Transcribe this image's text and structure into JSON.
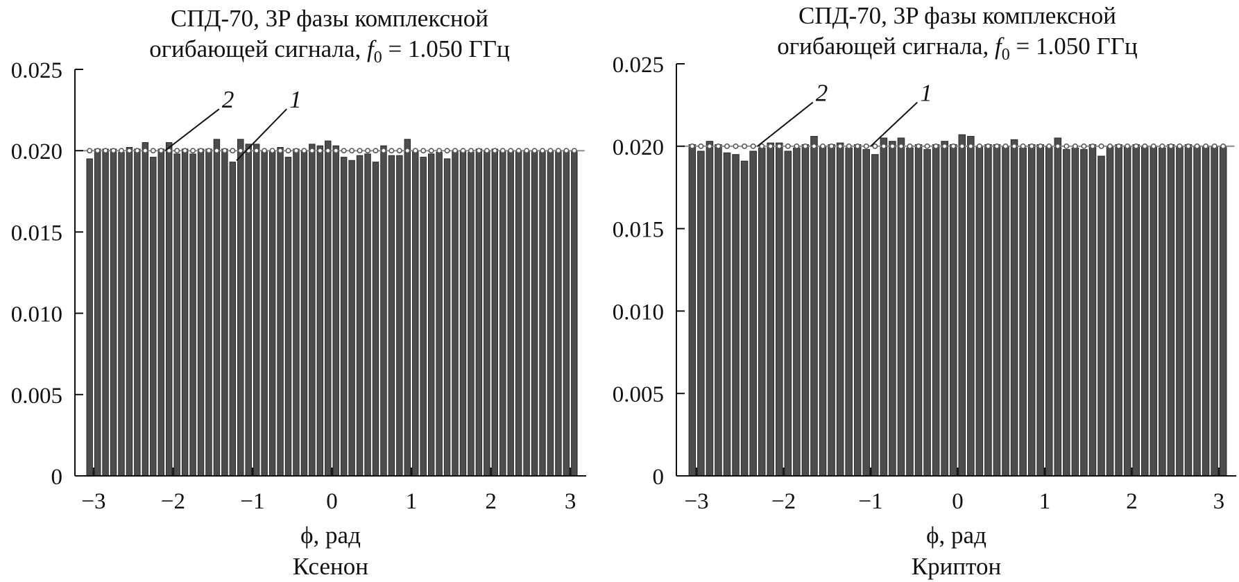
{
  "chart_data": [
    {
      "type": "bar",
      "title_prefix": "СПД-70, 3P фазы комплексной",
      "title_line2_prefix": "огибающей сигнала,",
      "title_f_symbol": "f",
      "title_f_subscript": "0",
      "title_f_value": "= 1.050 ГГц",
      "xlabel": "ϕ, рад",
      "caption": "Ксенон",
      "xlim": [
        -3.2,
        3.2
      ],
      "ylim": [
        0,
        0.025
      ],
      "xticks": [
        -3,
        -2,
        -1,
        0,
        1,
        2,
        3
      ],
      "xtick_labels": [
        "−3",
        "−2",
        "−1",
        "0",
        "1",
        "2",
        "3"
      ],
      "yticks": [
        0,
        0.005,
        0.01,
        0.015,
        0.02,
        0.025
      ],
      "ytick_labels": [
        "0",
        "0.005",
        "0.010",
        "0.015",
        "0.020",
        "0.025"
      ],
      "series": [
        {
          "label": "1",
          "kind": "bar",
          "x_start": -3.1,
          "bin_width": 0.1,
          "values": [
            0.0195,
            0.0201,
            0.0201,
            0.0201,
            0.0199,
            0.0202,
            0.0201,
            0.0205,
            0.0196,
            0.0201,
            0.0205,
            0.0198,
            0.0201,
            0.0198,
            0.0201,
            0.0201,
            0.0207,
            0.0201,
            0.0193,
            0.0207,
            0.0204,
            0.0204,
            0.02,
            0.02,
            0.0202,
            0.0196,
            0.0201,
            0.02,
            0.0204,
            0.0203,
            0.0206,
            0.0203,
            0.0196,
            0.0194,
            0.0197,
            0.0198,
            0.0193,
            0.0203,
            0.0197,
            0.0197,
            0.0207,
            0.02,
            0.0196,
            0.0198,
            0.0199,
            0.0195,
            0.02,
            0.02,
            0.0199,
            0.0201,
            0.02,
            0.0201,
            0.02,
            0.02,
            0.02,
            0.02,
            0.02,
            0.02,
            0.02,
            0.02,
            0.02,
            0.02,
            0.02
          ]
        },
        {
          "label": "2",
          "kind": "line-markers",
          "value": 0.02
        }
      ],
      "annotations": [
        {
          "text": "2",
          "series": "2",
          "x": -2.1,
          "y": 0.02,
          "label_x": -1.35,
          "label_y": 0.0229
        },
        {
          "text": "1",
          "series": "1",
          "x": -1.2,
          "y": 0.0194,
          "label_x": -0.5,
          "label_y": 0.0229
        }
      ]
    },
    {
      "type": "bar",
      "title_prefix": "СПД-70, 3P фазы комплексной",
      "title_line2_prefix": "огибающей сигнала,",
      "title_f_symbol": "f",
      "title_f_subscript": "0",
      "title_f_value": "= 1.050 ГГц",
      "xlabel": "ϕ, рад",
      "caption": "Криптон",
      "xlim": [
        -3.2,
        3.2
      ],
      "ylim": [
        0,
        0.025
      ],
      "xticks": [
        -3,
        -2,
        -1,
        0,
        1,
        2,
        3
      ],
      "xtick_labels": [
        "−3",
        "−2",
        "−1",
        "0",
        "1",
        "2",
        "3"
      ],
      "yticks": [
        0,
        0.005,
        0.01,
        0.015,
        0.02,
        0.025
      ],
      "ytick_labels": [
        "0",
        "0.005",
        "0.010",
        "0.015",
        "0.020",
        "0.025"
      ],
      "series": [
        {
          "label": "1",
          "kind": "bar",
          "x_start": -3.1,
          "bin_width": 0.1,
          "values": [
            0.0201,
            0.0197,
            0.0203,
            0.0201,
            0.0196,
            0.0195,
            0.0191,
            0.0197,
            0.0199,
            0.0202,
            0.0202,
            0.0197,
            0.0199,
            0.0201,
            0.0206,
            0.02,
            0.0201,
            0.0202,
            0.0199,
            0.0201,
            0.0198,
            0.0195,
            0.0205,
            0.0203,
            0.0205,
            0.0199,
            0.0201,
            0.0198,
            0.0201,
            0.0203,
            0.0201,
            0.0207,
            0.0206,
            0.02,
            0.0201,
            0.0201,
            0.02,
            0.0204,
            0.0199,
            0.0201,
            0.0201,
            0.02,
            0.0205,
            0.0198,
            0.0199,
            0.0198,
            0.0201,
            0.0194,
            0.02,
            0.0201,
            0.02,
            0.0201,
            0.02,
            0.02,
            0.0199,
            0.0201,
            0.02,
            0.0201,
            0.02,
            0.02,
            0.02,
            0.02,
            0.02
          ]
        },
        {
          "label": "2",
          "kind": "line-markers",
          "value": 0.02
        }
      ],
      "annotations": [
        {
          "text": "2",
          "series": "2",
          "x": -2.3,
          "y": 0.02,
          "label_x": -1.6,
          "label_y": 0.023
        },
        {
          "text": "1",
          "series": "1",
          "x": -1.0,
          "y": 0.02,
          "label_x": -0.4,
          "label_y": 0.023
        }
      ]
    }
  ]
}
